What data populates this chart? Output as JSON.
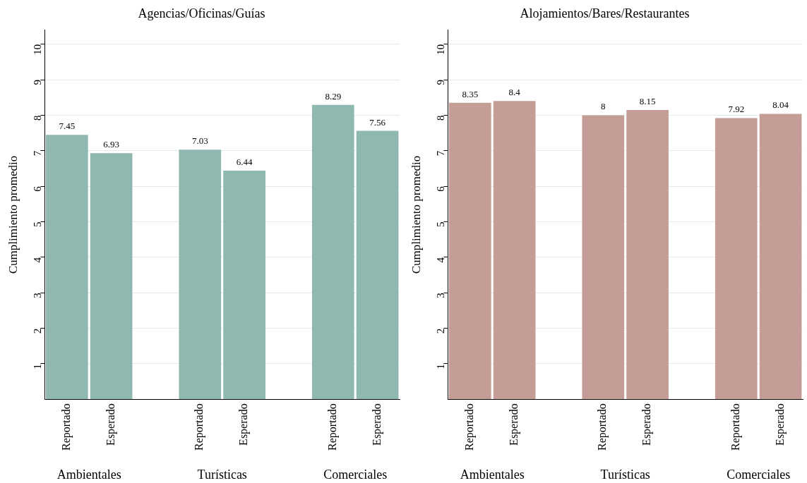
{
  "chart_data": [
    {
      "type": "bar",
      "title": "Agencias/Oficinas/Guías",
      "ylabel": "Cumplimiento promedio",
      "categories": [
        "Reportado",
        "Esperado",
        null,
        "Reportado",
        "Esperado",
        null,
        "Reportado",
        "Esperado"
      ],
      "values": [
        7.45,
        6.93,
        null,
        7.03,
        6.44,
        null,
        8.29,
        7.56
      ],
      "color": "#8fb8b0",
      "ylim": [
        0,
        10.4
      ],
      "yticks": [
        1,
        2,
        3,
        4,
        5,
        6,
        7,
        8,
        9,
        10
      ],
      "grid": "y",
      "data_labels": true,
      "annotations": [
        "Ambientales",
        "Turísticas",
        "Comerciales"
      ]
    },
    {
      "type": "bar",
      "title": "Alojamientos/Bares/Restaurantes",
      "ylabel": "Cumplimiento promedio",
      "categories": [
        "Reportado",
        "Esperado",
        null,
        "Reportado",
        "Esperado",
        null,
        "Reportado",
        "Esperado"
      ],
      "values": [
        8.35,
        8.4,
        null,
        8,
        8.15,
        null,
        7.92,
        8.04
      ],
      "color": "#c49e96",
      "ylim": [
        0,
        10.4
      ],
      "yticks": [
        1,
        2,
        3,
        4,
        5,
        6,
        7,
        8,
        9,
        10
      ],
      "grid": "y",
      "data_labels": true,
      "annotations": [
        "Ambientales",
        "Turísticas",
        "Comerciales"
      ]
    }
  ]
}
